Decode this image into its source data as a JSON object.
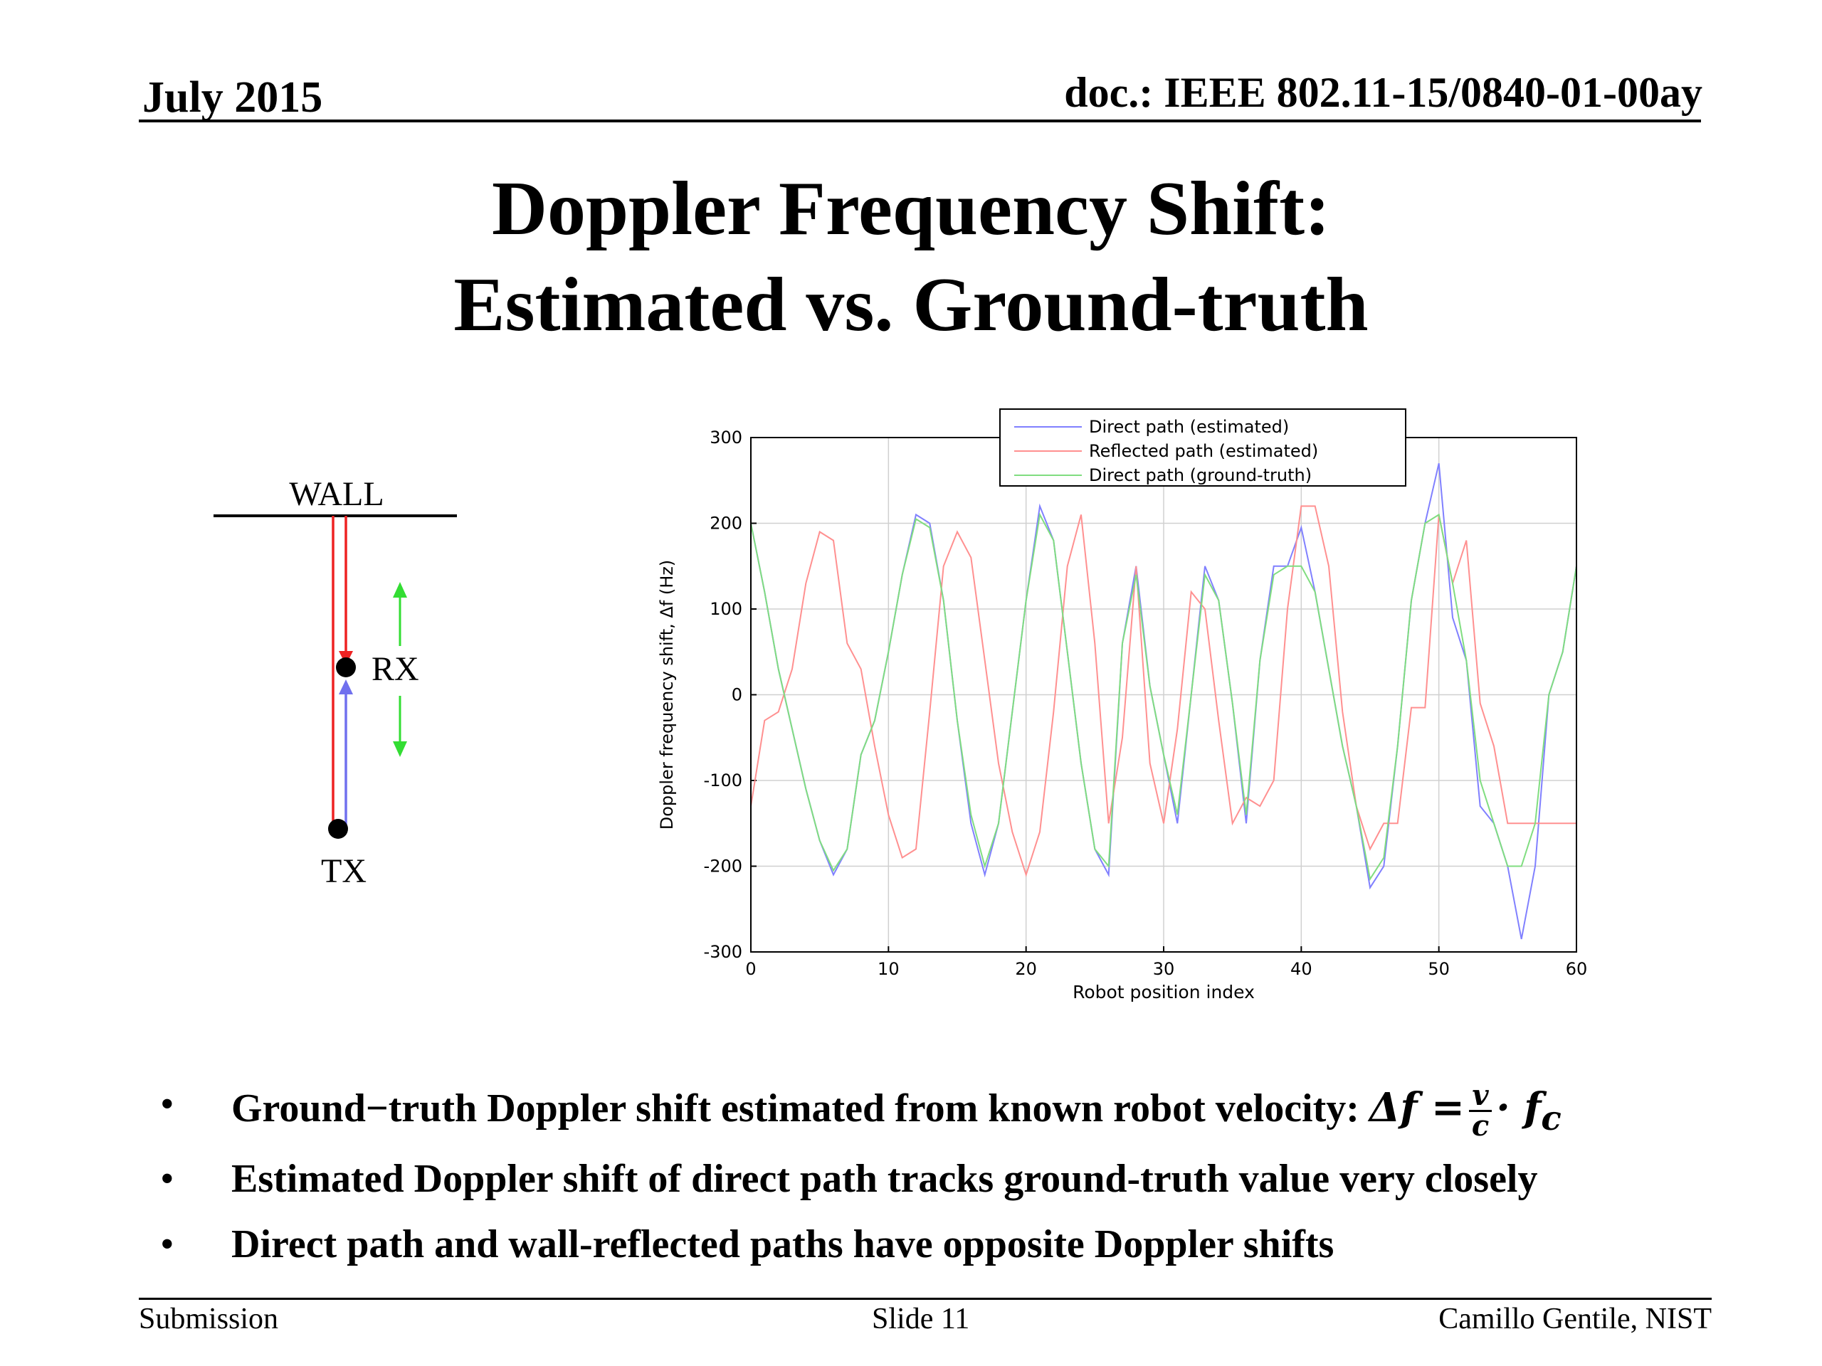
{
  "header": {
    "date": "July 2015",
    "doc_id": "doc.: IEEE 802.11-15/0840-01-00ay"
  },
  "title": {
    "line1": "Doppler Frequency Shift:",
    "line2": "Estimated vs. Ground-truth"
  },
  "diagram": {
    "wall_label": "WALL",
    "rx_label": "RX",
    "tx_label": "TX"
  },
  "chart_data": {
    "type": "line",
    "xlabel": "Robot position index",
    "ylabel": "Doppler frequency shift, Δf (Hz)",
    "xlim": [
      0,
      60
    ],
    "ylim": [
      -300,
      300
    ],
    "xticks": [
      0,
      10,
      20,
      30,
      40,
      50,
      60
    ],
    "yticks": [
      300,
      200,
      100,
      0,
      -100,
      -200,
      -300
    ],
    "grid": true,
    "legend_position": "top-center",
    "series": [
      {
        "name": "Direct path (estimated)",
        "color": "#8080ff",
        "x": [
          0,
          1,
          2,
          3,
          4,
          5,
          6,
          7,
          8,
          9,
          10,
          11,
          12,
          13,
          14,
          15,
          16,
          17,
          18,
          19,
          20,
          21,
          22,
          23,
          24,
          25,
          26,
          27,
          28,
          29,
          30,
          31,
          32,
          33,
          34,
          35,
          36,
          37,
          38,
          39,
          40,
          41,
          42,
          43,
          44,
          45,
          46,
          47,
          48,
          49,
          50,
          51,
          52,
          53,
          54,
          55,
          56,
          57,
          58,
          59,
          60
        ],
        "y": [
          200,
          120,
          30,
          -40,
          -110,
          -170,
          -210,
          -180,
          -70,
          -30,
          50,
          140,
          210,
          200,
          110,
          -30,
          -150,
          -210,
          -150,
          -20,
          110,
          220,
          180,
          50,
          -80,
          -180,
          -210,
          60,
          150,
          10,
          -70,
          -150,
          0,
          150,
          110,
          -10,
          -150,
          40,
          150,
          150,
          195,
          120,
          30,
          -60,
          -130,
          -225,
          -200,
          -60,
          110,
          200,
          270,
          90,
          40,
          -130,
          -150,
          -200,
          -285,
          -200,
          0,
          50,
          150
        ]
      },
      {
        "name": "Reflected path (estimated)",
        "color": "#ff9090",
        "x": [
          0,
          1,
          2,
          3,
          4,
          5,
          6,
          7,
          8,
          9,
          10,
          11,
          12,
          13,
          14,
          15,
          16,
          17,
          18,
          19,
          20,
          21,
          22,
          23,
          24,
          25,
          26,
          27,
          28,
          29,
          30,
          31,
          32,
          33,
          34,
          35,
          36,
          37,
          38,
          39,
          40,
          41,
          42,
          43,
          44,
          45,
          46,
          47,
          48,
          49,
          50,
          51,
          52,
          53,
          54,
          55,
          56,
          57,
          58,
          59,
          60
        ],
        "y": [
          -130,
          -30,
          -20,
          30,
          130,
          190,
          180,
          60,
          30,
          -60,
          -140,
          -190,
          -180,
          -20,
          150,
          190,
          160,
          40,
          -80,
          -160,
          -210,
          -160,
          -20,
          150,
          210,
          60,
          -150,
          -50,
          150,
          -80,
          -150,
          -40,
          120,
          100,
          -30,
          -150,
          -120,
          -130,
          -100,
          100,
          220,
          220,
          150,
          -20,
          -130,
          -180,
          -150,
          -150,
          -15,
          -15,
          210,
          130,
          180,
          -10,
          -60,
          -150,
          -150,
          -150,
          -150,
          -150,
          -150
        ]
      },
      {
        "name": "Direct path (ground-truth)",
        "color": "#80dd80",
        "x": [
          0,
          1,
          2,
          3,
          4,
          5,
          6,
          7,
          8,
          9,
          10,
          11,
          12,
          13,
          14,
          15,
          16,
          17,
          18,
          19,
          20,
          21,
          22,
          23,
          24,
          25,
          26,
          27,
          28,
          29,
          30,
          31,
          32,
          33,
          34,
          35,
          36,
          37,
          38,
          39,
          40,
          41,
          42,
          43,
          44,
          45,
          46,
          47,
          48,
          49,
          50,
          51,
          52,
          53,
          54,
          55,
          56,
          57,
          58,
          59,
          60
        ],
        "y": [
          200,
          120,
          30,
          -40,
          -110,
          -170,
          -205,
          -180,
          -70,
          -30,
          50,
          140,
          205,
          195,
          110,
          -30,
          -140,
          -200,
          -150,
          -20,
          110,
          210,
          180,
          50,
          -80,
          -180,
          -200,
          60,
          140,
          10,
          -70,
          -140,
          0,
          140,
          110,
          -10,
          -140,
          40,
          140,
          150,
          150,
          120,
          30,
          -60,
          -130,
          -215,
          -190,
          -60,
          110,
          200,
          210,
          130,
          40,
          -100,
          -150,
          -200,
          -200,
          -150,
          0,
          50,
          150
        ]
      }
    ]
  },
  "bullets": [
    {
      "text": "Ground−truth Doppler shift estimated from known robot velocity: ",
      "formula": {
        "lhs": "Δf =",
        "num": "v",
        "den": "c",
        "rhs": "· f",
        "sub": "c"
      }
    },
    {
      "text": "Estimated Doppler shift of direct path tracks ground-truth value very closely"
    },
    {
      "text": "Direct path and wall-reflected paths have opposite Doppler shifts"
    }
  ],
  "bullet_char": "•",
  "footer": {
    "left": "Submission",
    "center": "Slide 11",
    "right": "Camillo Gentile, NIST"
  }
}
